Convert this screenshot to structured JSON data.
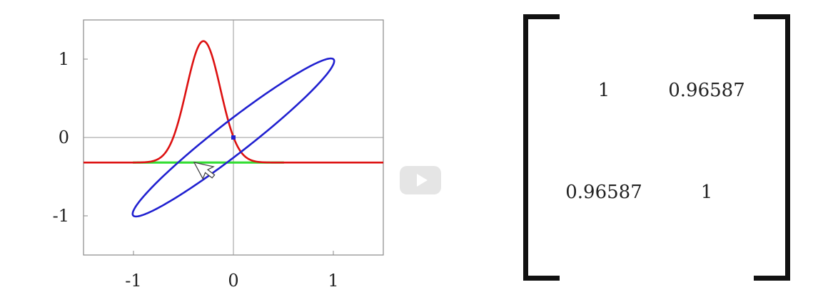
{
  "chart_data": {
    "type": "line",
    "xlim": [
      -1.5,
      1.5
    ],
    "ylim": [
      -1.5,
      1.5
    ],
    "x_ticks": [
      "-1",
      "0",
      "1"
    ],
    "y_ticks": [
      "1",
      "0",
      "-1"
    ],
    "grid": "axes through origin",
    "series": [
      {
        "color": "#2020d0",
        "shape": "ellipse",
        "center": [
          0,
          0
        ],
        "vertices": [
          [
            1,
            1
          ],
          [
            -1,
            -1
          ]
        ],
        "minor_intercept": 0.26
      },
      {
        "color": "#dd1111",
        "shape": "gaussian",
        "baseline": -0.32,
        "peak_x": -0.3,
        "peak_y": 1.23
      },
      {
        "color": "#33dd33",
        "shape": "segment",
        "x": [
          -1.0,
          0.5
        ],
        "y": [
          -0.32,
          -0.32
        ]
      }
    ],
    "center_marker": [
      0,
      0
    ]
  },
  "matrix": {
    "cells": [
      [
        "1",
        "0.96587"
      ],
      [
        "0.96587",
        "1"
      ]
    ]
  },
  "icons": {
    "play": "play-icon",
    "cursor": "mouse-cursor-icon"
  },
  "colors": {
    "ellipse": "#2020d0",
    "gaussian": "#dd1111",
    "highlight": "#33dd33",
    "play_button": "#e5e5e5"
  }
}
